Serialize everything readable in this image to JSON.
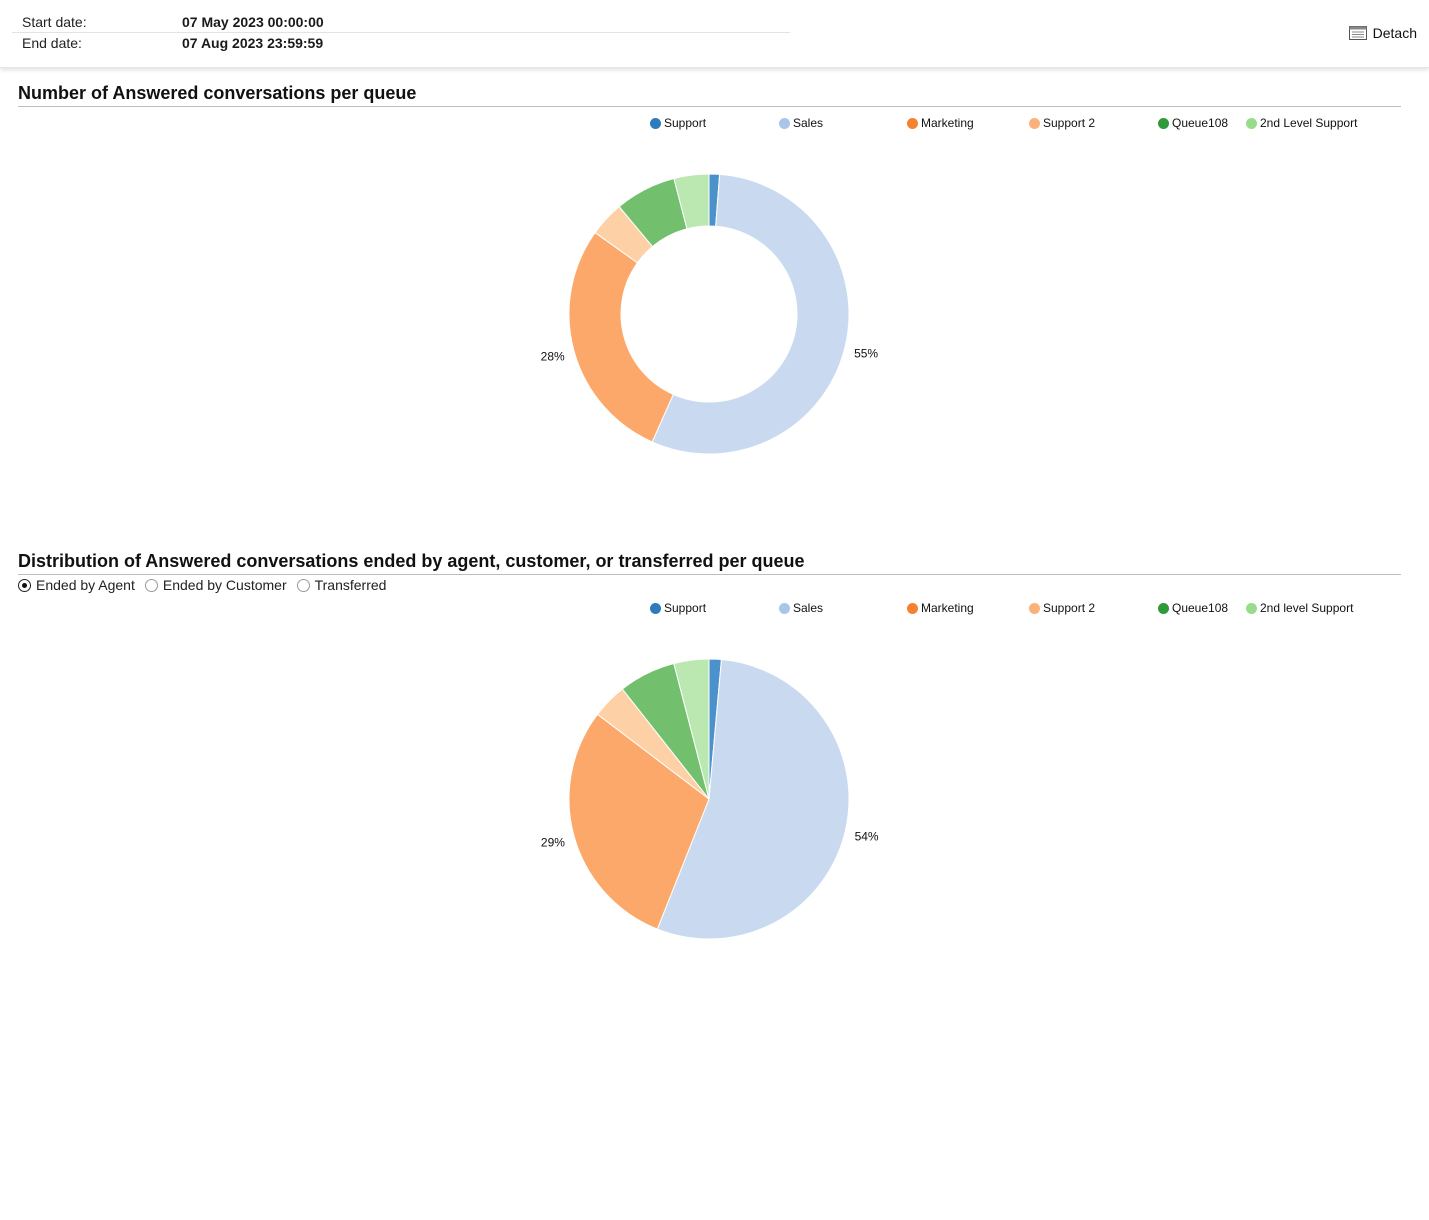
{
  "header": {
    "start_label": "Start date:",
    "start_value": "07 May 2023 00:00:00",
    "end_label": "End date:",
    "end_value": "07 Aug 2023 23:59:59",
    "detach_label": "Detach",
    "detach_icon": "window-icon"
  },
  "colors": {
    "Support": "#2e7bbd",
    "Sales": "#c7d8ef",
    "Marketing": "#f58231",
    "Support 2": "#fba86a",
    "Queue108": "#2e9a3a",
    "2nd Level Support": "#97dc8a",
    "slice_Support": "#4b92cc",
    "slice_Sales": "#c9daf0",
    "slice_Marketing": "#fca86b",
    "slice_Support2": "#fdd1a5",
    "slice_Queue108": "#72bf6e",
    "slice_2ndLevel": "#bbe8b0"
  },
  "sections": [
    {
      "title": "Number of Answered conversations per queue",
      "legend": [
        "Support",
        "Sales",
        "Marketing",
        "Support 2",
        "Queue108",
        "2nd Level Support"
      ]
    },
    {
      "title": "Distribution of Answered conversations ended by agent, customer, or transferred per queue",
      "legend": [
        "Support",
        "Sales",
        "Marketing",
        "Support 2",
        "Queue108",
        "2nd level Support"
      ],
      "radios": [
        {
          "label": "Ended by Agent",
          "checked": true
        },
        {
          "label": "Ended by Customer",
          "checked": false
        },
        {
          "label": "Transferred",
          "checked": false
        }
      ]
    }
  ],
  "chart_data": [
    {
      "type": "pie",
      "variant": "donut",
      "categories": [
        "Support",
        "Sales",
        "Marketing",
        "Support 2",
        "Queue108",
        "2nd Level Support"
      ],
      "values": [
        1.2,
        55,
        28,
        4,
        7,
        4
      ],
      "labels": [
        "",
        "55%",
        "28%",
        "",
        "",
        ""
      ],
      "title": "Number of Answered conversations per queue",
      "legend_position": "top-right"
    },
    {
      "type": "pie",
      "variant": "pie",
      "categories": [
        "Support",
        "Sales",
        "Marketing",
        "Support 2",
        "Queue108",
        "2nd level Support"
      ],
      "values": [
        1.4,
        54,
        29,
        4,
        6.5,
        4
      ],
      "labels": [
        "",
        "54%",
        "29%",
        "",
        "",
        ""
      ],
      "title": "Distribution of Answered conversations ended by agent, customer, or transferred per queue",
      "legend_position": "top-right"
    }
  ]
}
